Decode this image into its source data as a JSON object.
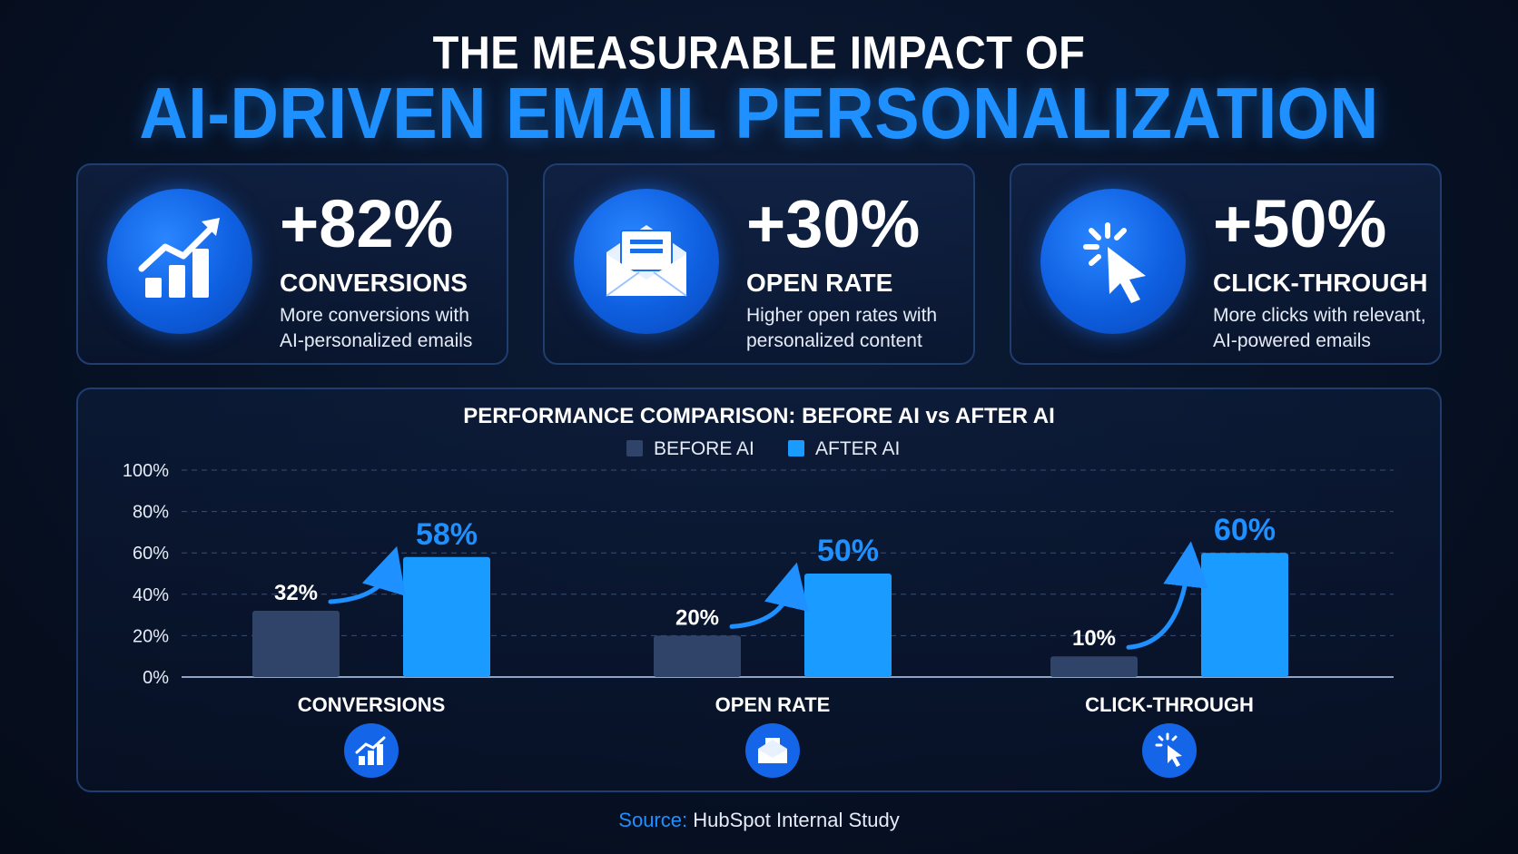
{
  "header": {
    "line1": "THE MEASURABLE IMPACT OF",
    "line2": "AI-DRIVEN EMAIL PERSONALIZATION"
  },
  "cards": [
    {
      "icon": "chart-growth-icon",
      "value": "+82%",
      "label": "CONVERSIONS",
      "desc_line1": "More conversions with",
      "desc_line2": "AI-personalized emails"
    },
    {
      "icon": "envelope-icon",
      "value": "+30%",
      "label": "OPEN RATE",
      "desc_line1": "Higher open rates with",
      "desc_line2": "personalized content"
    },
    {
      "icon": "cursor-click-icon",
      "value": "+50%",
      "label": "CLICK-THROUGH",
      "desc_line1": "More clicks with relevant,",
      "desc_line2": "AI-powered emails"
    }
  ],
  "colors": {
    "accent": "#1e90ff",
    "before_bar": "#2f4468",
    "after_bar": "#1a9bff",
    "grid": "#3a4d70"
  },
  "chart_data": {
    "type": "bar",
    "title": "PERFORMANCE COMPARISON: BEFORE AI vs AFTER AI",
    "categories": [
      "CONVERSIONS",
      "OPEN RATE",
      "CLICK-THROUGH"
    ],
    "category_icons": [
      "chart-growth-icon",
      "envelope-icon",
      "cursor-click-icon"
    ],
    "series": [
      {
        "name": "BEFORE AI",
        "values": [
          32,
          20,
          10
        ],
        "labels": [
          "32%",
          "20%",
          "10%"
        ]
      },
      {
        "name": "AFTER AI",
        "values": [
          58,
          50,
          60
        ],
        "labels": [
          "58%",
          "50%",
          "60%"
        ]
      }
    ],
    "ylim": [
      0,
      100
    ],
    "yticks": [
      "0%",
      "20%",
      "40%",
      "60%",
      "80%",
      "100%"
    ],
    "grid": true,
    "legend": "top-center"
  },
  "source": {
    "label": "Source:",
    "text": "HubSpot Internal Study"
  }
}
